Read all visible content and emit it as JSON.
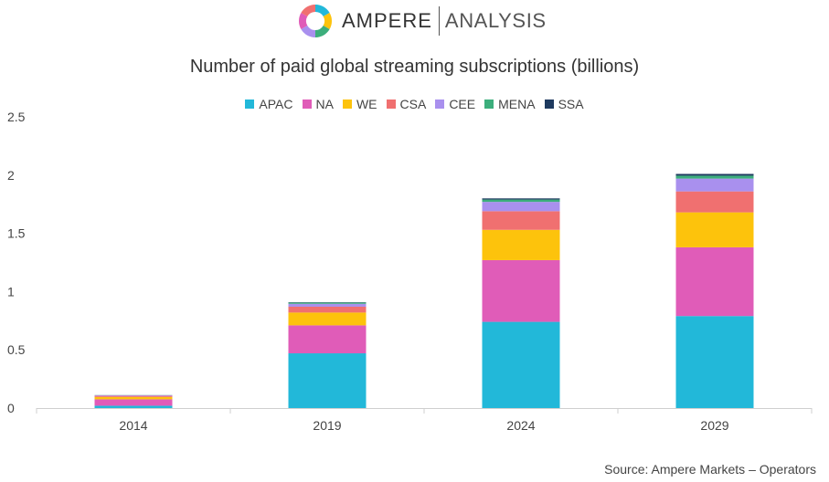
{
  "header": {
    "brand": "AMPERE",
    "brand_sub": "ANALYSIS"
  },
  "colors": {
    "APAC": "#22b8d9",
    "NA": "#e05cb8",
    "WE": "#fdc30c",
    "CSA": "#f07070",
    "CEE": "#a990ee",
    "MENA": "#3cae7c",
    "SSA": "#1e3a5f"
  },
  "chart_data": {
    "type": "bar",
    "stacked": true,
    "title": "Number of paid global streaming subscriptions (billions)",
    "categories": [
      "2014",
      "2019",
      "2024",
      "2029"
    ],
    "series": [
      {
        "name": "APAC",
        "values": [
          0.02,
          0.47,
          0.74,
          0.79
        ]
      },
      {
        "name": "NA",
        "values": [
          0.055,
          0.24,
          0.53,
          0.59
        ]
      },
      {
        "name": "WE",
        "values": [
          0.02,
          0.11,
          0.26,
          0.3
        ]
      },
      {
        "name": "CSA",
        "values": [
          0.01,
          0.05,
          0.16,
          0.18
        ]
      },
      {
        "name": "CEE",
        "values": [
          0.005,
          0.025,
          0.08,
          0.11
        ]
      },
      {
        "name": "MENA",
        "values": [
          0.001,
          0.01,
          0.02,
          0.025
        ]
      },
      {
        "name": "SSA",
        "values": [
          0.0005,
          0.003,
          0.01,
          0.015
        ]
      }
    ],
    "ylim": [
      0,
      2.5
    ],
    "yticks": [
      "0",
      "0.5",
      "1",
      "1.5",
      "2",
      "2.5"
    ],
    "grid": false,
    "legend_position": "top"
  },
  "source": "Source: Ampere Markets – Operators"
}
